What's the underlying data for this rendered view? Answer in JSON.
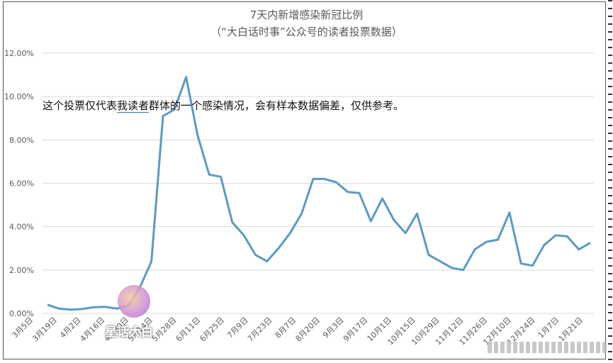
{
  "chart_data": {
    "type": "line",
    "title": "7天内新增感染新冠比例",
    "subtitle": "（“大白话时事”公众号的读者投票数据）",
    "annotation_pre": "这个投票仅代表",
    "annotation_link": "我读者",
    "annotation_post": "群体的一个感染情况，会有样本数据偏差，仅供参考。",
    "watermark": "星话大白",
    "ylim": [
      0,
      12
    ],
    "yticks": [
      "0.00%",
      "2.00%",
      "4.00%",
      "6.00%",
      "8.00%",
      "10.00%",
      "12.00%"
    ],
    "grid": "horizontal",
    "line_color": "#5b9ac4",
    "x_labels": [
      "3月5日",
      "3月19日",
      "4月2日",
      "4月16日",
      "4月30日",
      "5月14日",
      "5月28日",
      "6月11日",
      "6月25日",
      "7月9日",
      "7月23日",
      "8月7日",
      "8月20日",
      "9月3日",
      "9月17日",
      "10月1日",
      "10月15日",
      "10月29日",
      "11月12日",
      "11月26日",
      "12月10日",
      "12月24日",
      "1月7日",
      "1月21日"
    ],
    "series": [
      {
        "values": [
          0.4,
          0.22,
          0.17,
          0.2,
          0.28,
          0.3,
          0.22,
          0.35,
          1.2,
          2.4,
          9.1,
          9.4,
          10.9,
          8.2,
          6.4,
          6.3,
          4.2,
          3.6,
          2.7,
          2.4,
          3.0,
          3.7,
          4.6,
          6.2,
          6.2,
          6.05,
          5.6,
          5.55,
          4.25,
          5.3,
          4.3,
          3.7,
          4.6,
          2.7,
          2.4,
          2.1,
          2.0,
          2.95,
          3.3,
          3.4,
          4.65,
          2.3,
          2.2,
          3.15,
          3.6,
          3.55,
          2.95,
          3.25
        ]
      }
    ]
  }
}
